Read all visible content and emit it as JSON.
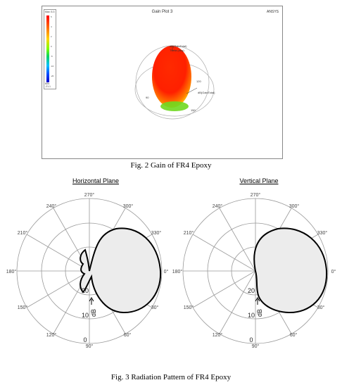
{
  "fig2": {
    "plot_title": "Gain Plot 3",
    "brand": "ANSYS",
    "legend_max": "Max: 5.3",
    "legend_min": "Min: -21.1",
    "legend_ticks": [
      "5",
      "4",
      "2",
      "0",
      "-5",
      "-10",
      "-20"
    ],
    "labels": {
      "gain_total": "dB(GainTotal)",
      "theta": "Theta (deg)",
      "gain_total_right": "dB(GainTotal)",
      "v120": "120",
      "v150": "150",
      "v90": "90"
    },
    "caption": "Fig. 2 Gain of FR4 Epoxy"
  },
  "fig3": {
    "caption": "Fig. 3 Radiation Pattern of FR4 Epoxy",
    "plots": [
      {
        "title": "Horizontal Plane"
      },
      {
        "title": "Vertical Plane"
      }
    ],
    "angle_labels": [
      "0°",
      "30°",
      "60°",
      "90°",
      "120°",
      "150°",
      "180°",
      "210°",
      "240°",
      "270°",
      "300°",
      "330°"
    ],
    "ring_labels": [
      "0",
      "10",
      "20"
    ],
    "unit_label": "dB"
  }
}
